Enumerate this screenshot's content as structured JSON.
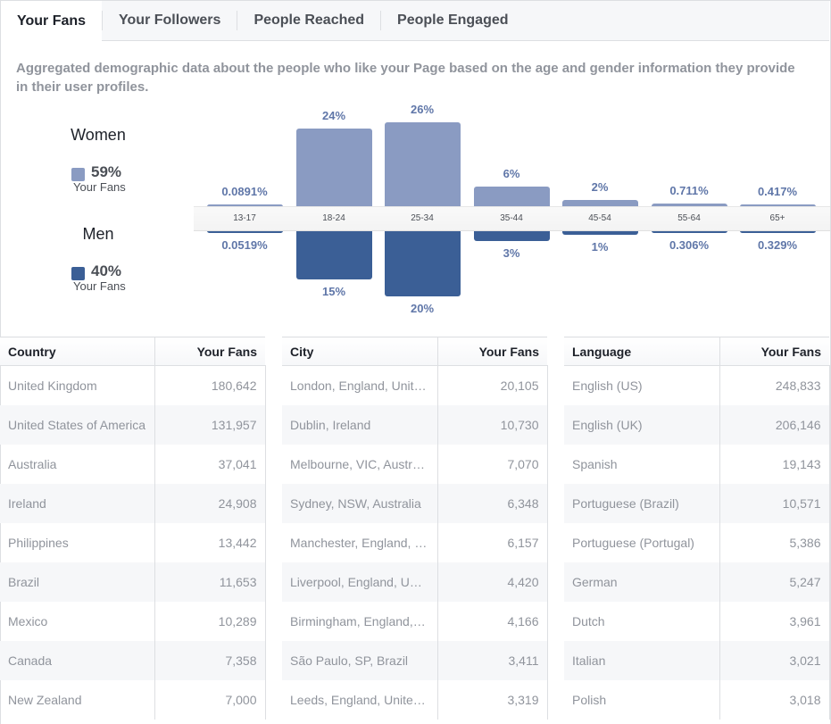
{
  "tabs": [
    "Your Fans",
    "Your Followers",
    "People Reached",
    "People Engaged"
  ],
  "description": "Aggregated demographic data about the people who like your Page based on the age and gender information they provide in their user profiles.",
  "legend": {
    "women": {
      "label": "Women",
      "percent": "59%",
      "sub": "Your Fans",
      "color": "#8a9bc2"
    },
    "men": {
      "label": "Men",
      "percent": "40%",
      "sub": "Your Fans",
      "color": "#3b5f96"
    }
  },
  "age_groups": [
    {
      "age": "13-17",
      "women": 0.0891,
      "women_label": "0.0891%",
      "men": 0.0519,
      "men_label": "0.0519%"
    },
    {
      "age": "18-24",
      "women": 24,
      "women_label": "24%",
      "men": 15,
      "men_label": "15%"
    },
    {
      "age": "25-34",
      "women": 26,
      "women_label": "26%",
      "men": 20,
      "men_label": "20%"
    },
    {
      "age": "35-44",
      "women": 6,
      "women_label": "6%",
      "men": 3,
      "men_label": "3%"
    },
    {
      "age": "45-54",
      "women": 2,
      "women_label": "2%",
      "men": 1,
      "men_label": "1%"
    },
    {
      "age": "55-64",
      "women": 0.711,
      "women_label": "0.711%",
      "men": 0.306,
      "men_label": "0.306%"
    },
    {
      "age": "65+",
      "women": 0.417,
      "women_label": "0.417%",
      "men": 0.329,
      "men_label": "0.329%"
    }
  ],
  "tables": [
    {
      "headers": [
        "Country",
        "Your Fans"
      ],
      "rows": [
        [
          "United Kingdom",
          "180,642"
        ],
        [
          "United States of America",
          "131,957"
        ],
        [
          "Australia",
          "37,041"
        ],
        [
          "Ireland",
          "24,908"
        ],
        [
          "Philippines",
          "13,442"
        ],
        [
          "Brazil",
          "11,653"
        ],
        [
          "Mexico",
          "10,289"
        ],
        [
          "Canada",
          "7,358"
        ],
        [
          "New Zealand",
          "7,000"
        ]
      ]
    },
    {
      "headers": [
        "City",
        "Your Fans"
      ],
      "rows": [
        [
          "London, England, United Kingdom",
          "20,105"
        ],
        [
          "Dublin, Ireland",
          "10,730"
        ],
        [
          "Melbourne, VIC, Australia",
          "7,070"
        ],
        [
          "Sydney, NSW, Australia",
          "6,348"
        ],
        [
          "Manchester, England, United Kingdom",
          "6,157"
        ],
        [
          "Liverpool, England, United Kingdom",
          "4,420"
        ],
        [
          "Birmingham, England, United Kingdom",
          "4,166"
        ],
        [
          "São Paulo, SP, Brazil",
          "3,411"
        ],
        [
          "Leeds, England, United Kingdom",
          "3,319"
        ]
      ]
    },
    {
      "headers": [
        "Language",
        "Your Fans"
      ],
      "rows": [
        [
          "English (US)",
          "248,833"
        ],
        [
          "English (UK)",
          "206,146"
        ],
        [
          "Spanish",
          "19,143"
        ],
        [
          "Portuguese (Brazil)",
          "10,571"
        ],
        [
          "Portuguese (Portugal)",
          "5,386"
        ],
        [
          "German",
          "5,247"
        ],
        [
          "Dutch",
          "3,961"
        ],
        [
          "Italian",
          "3,021"
        ],
        [
          "Polish",
          "3,018"
        ]
      ]
    }
  ]
}
